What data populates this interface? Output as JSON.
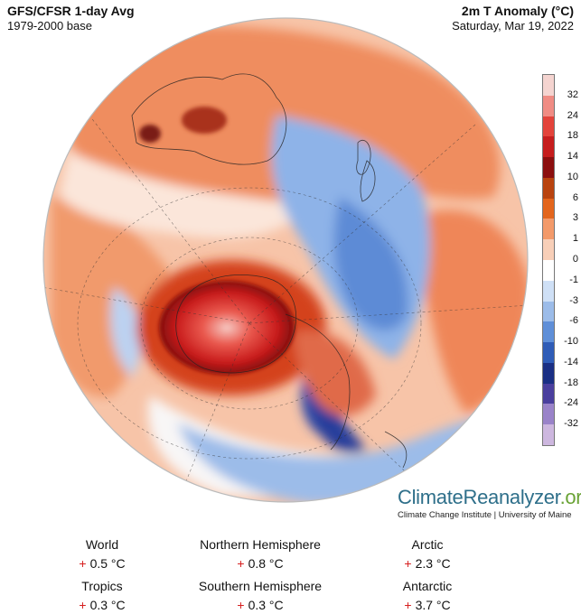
{
  "header": {
    "title": "GFS/CFSR 1-day Avg",
    "baseline": "1979-2000 base",
    "variable": "2m T Anomaly (°C)",
    "date": "Saturday, Mar 19, 2022"
  },
  "legend": {
    "labels": [
      "32",
      "24",
      "18",
      "14",
      "10",
      "6",
      "3",
      "1",
      "0",
      "-1",
      "-3",
      "-6",
      "-10",
      "-14",
      "-18",
      "-24",
      "-32"
    ],
    "colors": [
      "#f5d4d0",
      "#f08c84",
      "#e3433b",
      "#c61d1d",
      "#8c0f0f",
      "#b9430f",
      "#e3651c",
      "#f39a6a",
      "#f8cfb8",
      "#ffffff",
      "#cfe0f6",
      "#9cbce9",
      "#5f8fd8",
      "#2f5cb7",
      "#1a2f84",
      "#4a3f9e",
      "#9a83c9",
      "#cdb7df"
    ]
  },
  "brand": {
    "name_part1": "Climate",
    "name_part2": "Reanalyzer",
    "name_part3": ".org",
    "tagline": "Climate Change Institute | University of Maine"
  },
  "stats": [
    {
      "label": "World",
      "sign": "+",
      "value": "0.5 °C"
    },
    {
      "label": "Northern Hemisphere",
      "sign": "+",
      "value": "0.8 °C"
    },
    {
      "label": "Arctic",
      "sign": "+",
      "value": "2.3 °C"
    },
    {
      "label": "Tropics",
      "sign": "+",
      "value": "0.3 °C"
    },
    {
      "label": "Southern Hemisphere",
      "sign": "+",
      "value": "0.3 °C"
    },
    {
      "label": "Antarctic",
      "sign": "+",
      "value": "3.7 °C"
    }
  ],
  "colors": {
    "warm": "#ef8a5a",
    "cool": "#86ace6",
    "hot": "#c71b1b",
    "cold": "#263c9b"
  }
}
